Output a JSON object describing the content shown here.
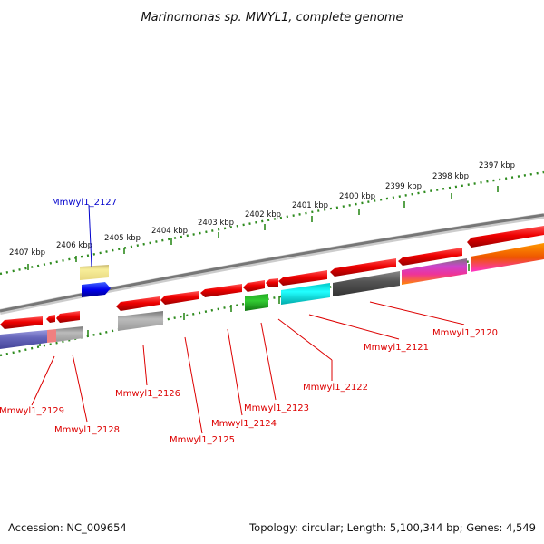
{
  "title": "Marinomonas sp. MWYL1, complete genome",
  "footer": {
    "accession": "Accession: NC_009654",
    "topology": "Topology: circular; Length: 5,100,344 bp; Genes: 4,549"
  },
  "colors": {
    "backbone": "#7a7a7a",
    "ruler": "#2e8b1e",
    "forward_cds": "#dd0000",
    "label_red": "#dd0000",
    "label_blue": "#0000cc"
  },
  "kbp_ticks": [
    "2407 kbp",
    "2406 kbp",
    "2405 kbp",
    "2404 kbp",
    "2403 kbp",
    "2402 kbp",
    "2401 kbp",
    "2400 kbp",
    "2399 kbp",
    "2398 kbp",
    "2397 kbp"
  ],
  "gene_labels": [
    {
      "text": "Mmwyl1_2127",
      "color": "blue"
    },
    {
      "text": "Mmwyl1_2129",
      "color": "red"
    },
    {
      "text": "Mmwyl1_2128",
      "color": "red"
    },
    {
      "text": "Mmwyl1_2126",
      "color": "red"
    },
    {
      "text": "Mmwyl1_2125",
      "color": "red"
    },
    {
      "text": "Mmwyl1_2124",
      "color": "red"
    },
    {
      "text": "Mmwyl1_2123",
      "color": "red"
    },
    {
      "text": "Mmwyl1_2122",
      "color": "red"
    },
    {
      "text": "Mmwyl1_2121",
      "color": "red"
    },
    {
      "text": "Mmwyl1_2120",
      "color": "red"
    }
  ]
}
